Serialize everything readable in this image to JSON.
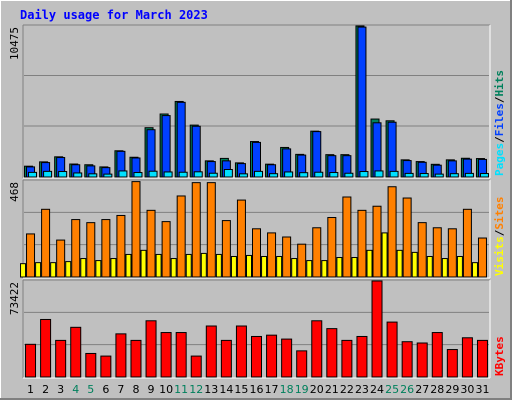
{
  "title": "Daily usage for March 2023",
  "colors": {
    "hits": "#00805c",
    "files": "#0040ff",
    "pages": "#00e0ff",
    "visits": "#ffff00",
    "sites": "#ff8000",
    "kbytes": "#ff0000",
    "weekday": "#000000",
    "weekend": "#00805c"
  },
  "chart_data": [
    {
      "type": "bar",
      "title": "Hits / Files / Pages",
      "ymax_label": "10475",
      "ylim": [
        0,
        10475
      ],
      "legend": [
        {
          "label": "Hits",
          "color": "#00805c"
        },
        {
          "label": "Files",
          "color": "#0040ff"
        },
        {
          "label": "Pages",
          "color": "#00e0ff"
        }
      ],
      "categories": [
        "1",
        "2",
        "3",
        "4",
        "5",
        "6",
        "7",
        "8",
        "9",
        "10",
        "11",
        "12",
        "13",
        "14",
        "15",
        "16",
        "17",
        "18",
        "19",
        "20",
        "21",
        "22",
        "23",
        "24",
        "25",
        "26",
        "27",
        "28",
        "29",
        "30",
        "31"
      ],
      "series": [
        {
          "name": "Hits",
          "values": [
            750,
            1050,
            1400,
            900,
            850,
            700,
            1820,
            1370,
            3420,
            4370,
            5240,
            3600,
            1120,
            1290,
            980,
            2460,
            890,
            2050,
            1570,
            3180,
            1550,
            1550,
            10475,
            4020,
            3900,
            1190,
            1070,
            880,
            1190,
            1300,
            1280
          ]
        },
        {
          "name": "Files",
          "values": [
            700,
            1000,
            1350,
            850,
            770,
            650,
            1780,
            1320,
            3280,
            4260,
            5180,
            3520,
            1070,
            1120,
            930,
            2400,
            850,
            1950,
            1520,
            3150,
            1480,
            1480,
            10400,
            3760,
            3800,
            1140,
            1020,
            820,
            1120,
            1240,
            1220
          ]
        },
        {
          "name": "Pages",
          "values": [
            320,
            390,
            380,
            280,
            220,
            200,
            420,
            310,
            400,
            350,
            330,
            360,
            260,
            520,
            220,
            390,
            230,
            350,
            300,
            330,
            310,
            260,
            380,
            420,
            390,
            250,
            240,
            200,
            230,
            250,
            240
          ]
        }
      ]
    },
    {
      "type": "bar",
      "title": "Sites / Visits",
      "ymax_label": "468",
      "ylim": [
        0,
        468
      ],
      "legend": [
        {
          "label": "Sites",
          "color": "#ff8000"
        },
        {
          "label": "Visits",
          "color": "#ffff00"
        }
      ],
      "categories": [
        "1",
        "2",
        "3",
        "4",
        "5",
        "6",
        "7",
        "8",
        "9",
        "10",
        "11",
        "12",
        "13",
        "14",
        "15",
        "16",
        "17",
        "18",
        "19",
        "20",
        "21",
        "22",
        "23",
        "24",
        "25",
        "26",
        "27",
        "28",
        "29",
        "30",
        "31"
      ],
      "series": [
        {
          "name": "Sites",
          "values": [
            210,
            330,
            180,
            280,
            265,
            280,
            300,
            465,
            325,
            270,
            395,
            460,
            460,
            275,
            375,
            235,
            215,
            195,
            160,
            240,
            290,
            390,
            325,
            345,
            440,
            385,
            265,
            240,
            235,
            330,
            190
          ]
        },
        {
          "name": "Visits",
          "values": [
            65,
            70,
            70,
            75,
            90,
            80,
            90,
            110,
            130,
            110,
            90,
            110,
            115,
            110,
            100,
            105,
            100,
            100,
            90,
            80,
            80,
            95,
            95,
            130,
            215,
            130,
            120,
            100,
            90,
            100,
            70
          ]
        }
      ]
    },
    {
      "type": "bar",
      "title": "KBytes",
      "ymax_label": "73422",
      "ylim": [
        0,
        73422
      ],
      "legend": [
        {
          "label": "KBytes",
          "color": "#ff0000"
        }
      ],
      "categories": [
        "1",
        "2",
        "3",
        "4",
        "5",
        "6",
        "7",
        "8",
        "9",
        "10",
        "11",
        "12",
        "13",
        "14",
        "15",
        "16",
        "17",
        "18",
        "19",
        "20",
        "21",
        "22",
        "23",
        "24",
        "25",
        "26",
        "27",
        "28",
        "29",
        "30",
        "31"
      ],
      "series": [
        {
          "name": "KBytes",
          "values": [
            25000,
            44000,
            28000,
            38000,
            18000,
            16000,
            33000,
            28000,
            43000,
            34000,
            34000,
            16000,
            39000,
            28000,
            39000,
            31000,
            32000,
            29000,
            20000,
            43000,
            37000,
            28000,
            31000,
            73422,
            42000,
            27000,
            26000,
            34000,
            21000,
            30000,
            28000
          ]
        }
      ]
    }
  ],
  "weekend_days": [
    4,
    5,
    11,
    12,
    18,
    19,
    25,
    26
  ]
}
